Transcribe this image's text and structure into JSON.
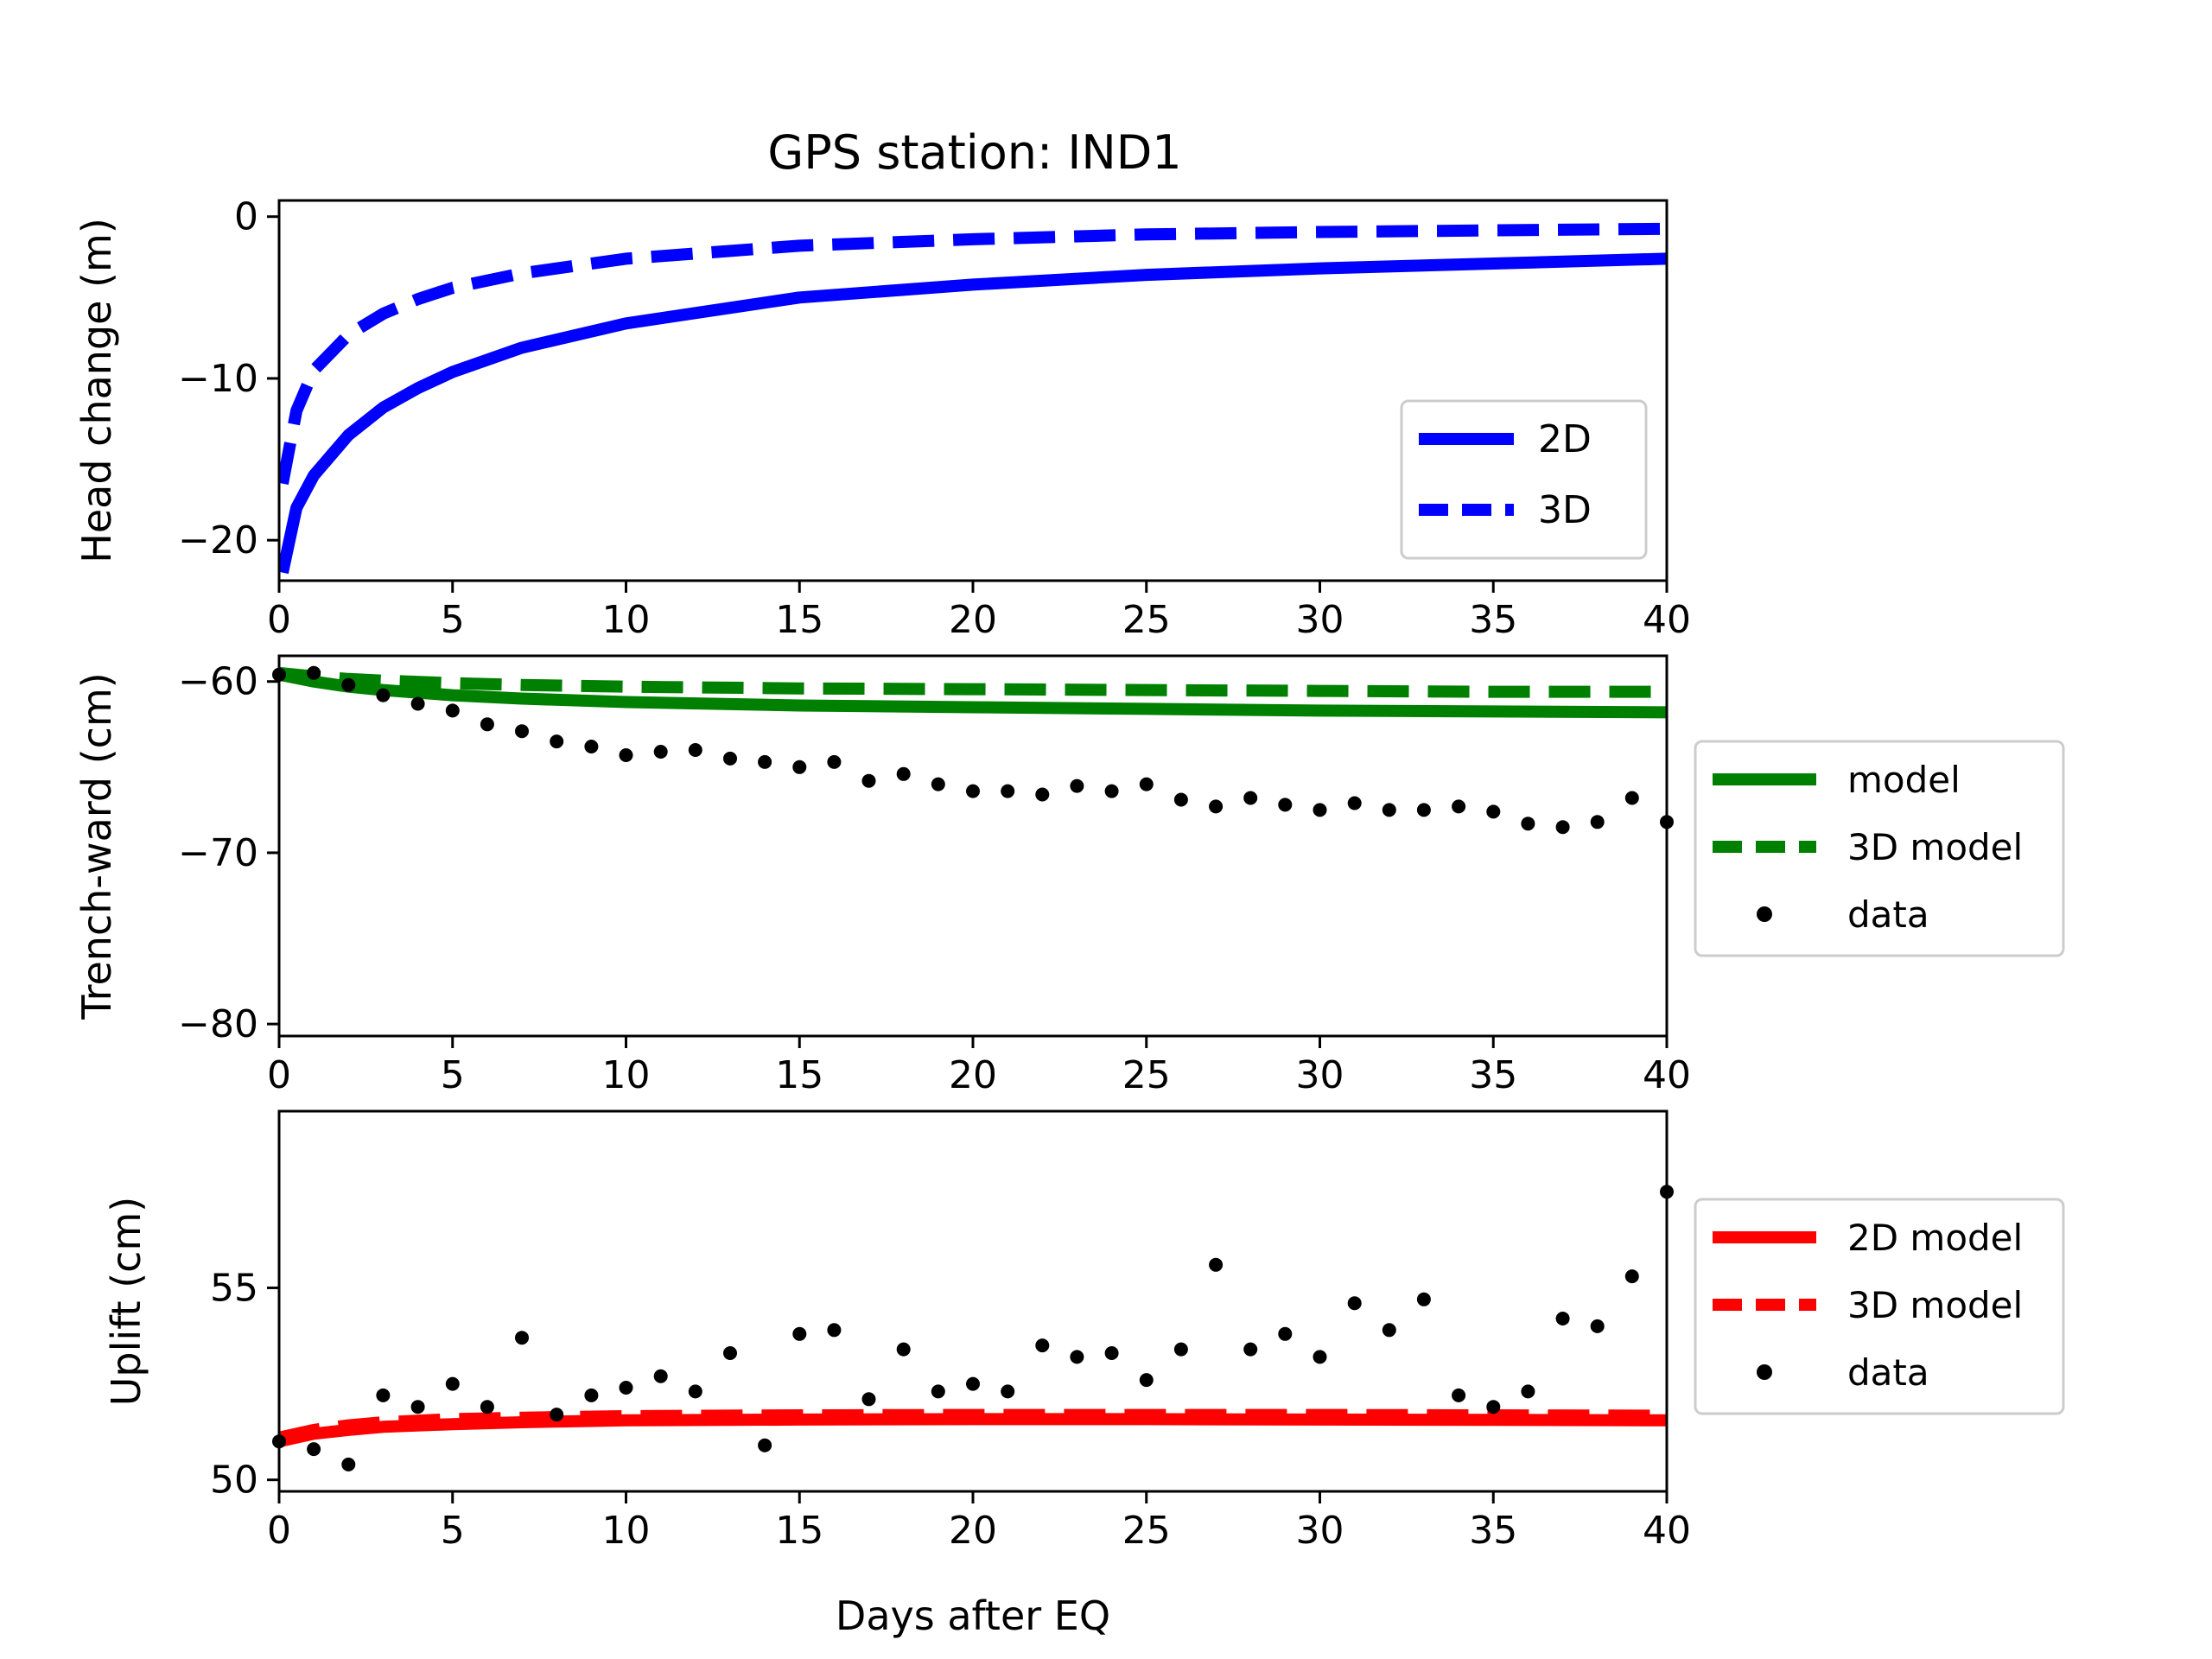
{
  "chart_data": [
    {
      "type": "line",
      "title": "GPS station: IND1",
      "xlabel": "",
      "ylabel": "Head change (m)",
      "xlim": [
        0,
        40
      ],
      "ylim": [
        -22.5,
        1
      ],
      "xticks": [
        "0",
        "5",
        "10",
        "15",
        "20",
        "25",
        "30",
        "35",
        "40"
      ],
      "yticks": [
        "0",
        "−10",
        "−20"
      ],
      "ytick_values": [
        0,
        -10,
        -20
      ],
      "legend_position": "lower-right",
      "series": [
        {
          "name": "2D",
          "style": "solid",
          "color": "#0000ff",
          "x": [
            0.1,
            0.5,
            1,
            2,
            3,
            4,
            5,
            7,
            10,
            15,
            20,
            25,
            30,
            35,
            40
          ],
          "y": [
            -22,
            -18,
            -16,
            -13.5,
            -11.8,
            -10.6,
            -9.6,
            -8.1,
            -6.6,
            -5,
            -4.2,
            -3.6,
            -3.2,
            -2.9,
            -2.6
          ]
        },
        {
          "name": "3D",
          "style": "dashed",
          "color": "#0000ff",
          "x": [
            0.1,
            0.5,
            1,
            2,
            3,
            4,
            5,
            7,
            10,
            15,
            20,
            25,
            30,
            35,
            40
          ],
          "y": [
            -16.5,
            -12,
            -9.5,
            -7.3,
            -6,
            -5.1,
            -4.4,
            -3.5,
            -2.6,
            -1.8,
            -1.4,
            -1.1,
            -0.95,
            -0.85,
            -0.75
          ]
        }
      ]
    },
    {
      "type": "line",
      "title": "",
      "xlabel": "",
      "ylabel": "Trench-ward (cm)",
      "xlim": [
        0,
        40
      ],
      "ylim": [
        -80.7,
        -58.5
      ],
      "xticks": [
        "0",
        "5",
        "10",
        "15",
        "20",
        "25",
        "30",
        "35",
        "40"
      ],
      "yticks": [
        "−60",
        "−70",
        "−80"
      ],
      "ytick_values": [
        -60,
        -70,
        -80
      ],
      "legend_position": "outside-right",
      "series": [
        {
          "name": "model",
          "style": "solid",
          "color": "#008000",
          "x": [
            0,
            1,
            2,
            3,
            5,
            7,
            10,
            15,
            20,
            25,
            30,
            35,
            40
          ],
          "y": [
            -59.6,
            -60,
            -60.3,
            -60.5,
            -60.8,
            -61,
            -61.2,
            -61.4,
            -61.5,
            -61.6,
            -61.7,
            -61.75,
            -61.8
          ]
        },
        {
          "name": "3D model",
          "style": "dashed",
          "color": "#008000",
          "x": [
            0,
            1,
            2,
            3,
            5,
            7,
            10,
            15,
            20,
            25,
            30,
            35,
            40
          ],
          "y": [
            -59.5,
            -59.7,
            -59.85,
            -59.95,
            -60.1,
            -60.2,
            -60.3,
            -60.4,
            -60.45,
            -60.5,
            -60.55,
            -60.6,
            -60.6
          ]
        },
        {
          "name": "data",
          "style": "points",
          "color": "#000000",
          "x": [
            0,
            1,
            2,
            3,
            4,
            5,
            6,
            7,
            8,
            9,
            10,
            11,
            12,
            13,
            14,
            15,
            16,
            17,
            18,
            19,
            20,
            21,
            22,
            23,
            24,
            25,
            26,
            27,
            28,
            29,
            30,
            31,
            32,
            33,
            34,
            35,
            36,
            37,
            38,
            39,
            40
          ],
          "y": [
            -59.6,
            -59.5,
            -60.2,
            -60.8,
            -61.3,
            -61.7,
            -62.5,
            -62.9,
            -63.5,
            -63.8,
            -64.3,
            -64.1,
            -64,
            -64.5,
            -64.7,
            -65,
            -64.7,
            -65.8,
            -65.4,
            -66,
            -66.4,
            -66.4,
            -66.6,
            -66.1,
            -66.4,
            -66,
            -66.9,
            -67.3,
            -66.8,
            -67.2,
            -67.5,
            -67.1,
            -67.5,
            -67.5,
            -67.3,
            -67.6,
            -68.3,
            -68.5,
            -68.2,
            -66.8,
            -68.2
          ]
        }
      ]
    },
    {
      "type": "line",
      "title": "",
      "xlabel": "Days after EQ",
      "ylabel": "Uplift (cm)",
      "xlim": [
        0,
        40
      ],
      "ylim": [
        49.7,
        59.6
      ],
      "xticks": [
        "0",
        "5",
        "10",
        "15",
        "20",
        "25",
        "30",
        "35",
        "40"
      ],
      "yticks": [
        "55",
        "50"
      ],
      "ytick_values": [
        55,
        50
      ],
      "legend_position": "outside-right",
      "series": [
        {
          "name": "2D model",
          "style": "solid",
          "color": "#ff0000",
          "x": [
            0,
            1,
            2,
            3,
            5,
            7,
            10,
            15,
            20,
            25,
            30,
            35,
            40
          ],
          "y": [
            51,
            51.2,
            51.3,
            51.38,
            51.45,
            51.5,
            51.55,
            51.57,
            51.58,
            51.58,
            51.57,
            51.56,
            51.55
          ]
        },
        {
          "name": "3D model",
          "style": "dashed",
          "color": "#ff0000",
          "x": [
            0,
            1,
            2,
            3,
            5,
            7,
            10,
            15,
            20,
            25,
            30,
            35,
            40
          ],
          "y": [
            51.1,
            51.3,
            51.42,
            51.5,
            51.58,
            51.62,
            51.66,
            51.68,
            51.69,
            51.69,
            51.69,
            51.68,
            51.67
          ]
        },
        {
          "name": "data",
          "style": "points",
          "color": "#000000",
          "x": [
            0,
            1,
            2,
            3,
            4,
            5,
            6,
            7,
            8,
            9,
            10,
            11,
            12,
            13,
            14,
            15,
            16,
            17,
            18,
            19,
            20,
            21,
            22,
            23,
            24,
            25,
            26,
            27,
            28,
            29,
            30,
            31,
            32,
            33,
            34,
            35,
            36,
            37,
            38,
            39,
            40
          ],
          "y": [
            51,
            50.8,
            50.4,
            52.2,
            51.9,
            52.5,
            51.9,
            53.7,
            51.7,
            52.2,
            52.4,
            52.7,
            52.3,
            53.3,
            50.9,
            53.8,
            53.9,
            52.1,
            53.4,
            52.3,
            52.5,
            52.3,
            53.5,
            53.2,
            53.3,
            52.6,
            53.4,
            55.6,
            53.4,
            53.8,
            53.2,
            54.6,
            53.9,
            54.7,
            52.2,
            51.9,
            52.3,
            54.2,
            54,
            55.3,
            57.5
          ]
        }
      ]
    }
  ]
}
